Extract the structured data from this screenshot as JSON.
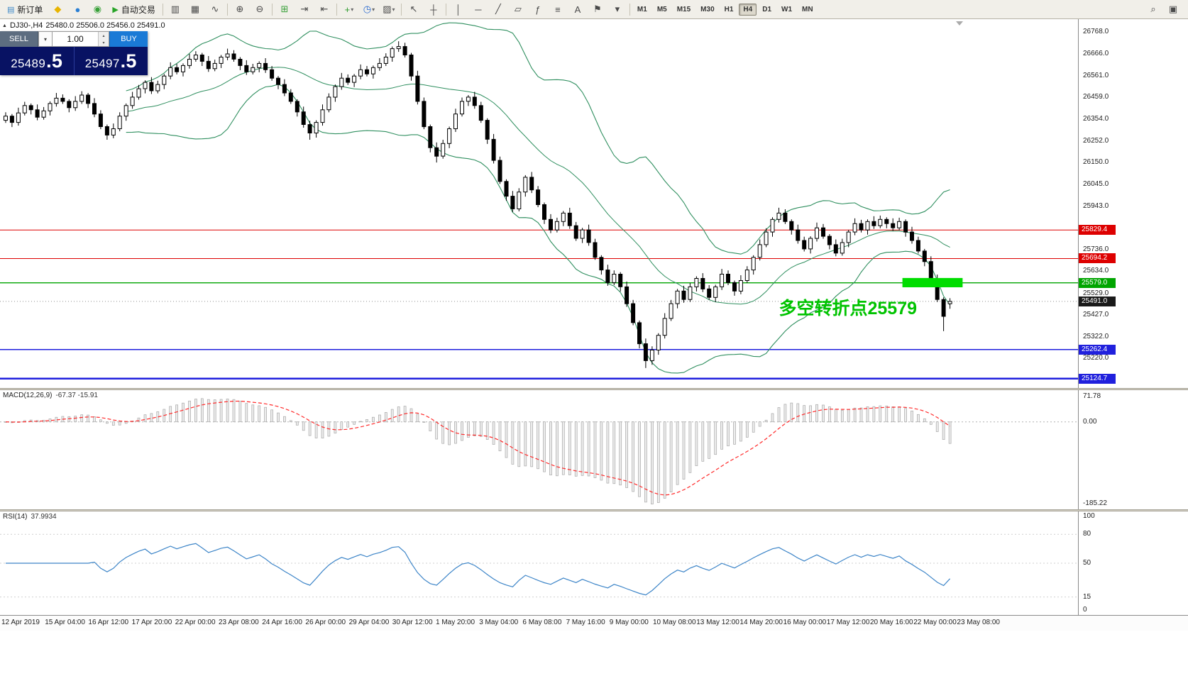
{
  "ui": {
    "caret_down": "▾",
    "spin_up": "▴",
    "spin_down": "▾",
    "symbol_marker": "▲"
  },
  "toolbar": {
    "items": [
      {
        "name": "new-order-button",
        "type": "button",
        "label": "新订单",
        "glyph": "▤",
        "glyph_color": "#3a87c8"
      },
      {
        "name": "lightning-icon",
        "type": "icon",
        "glyph": "◆",
        "glyph_color": "#e8b400"
      },
      {
        "name": "community-icon",
        "type": "icon",
        "glyph": "●",
        "glyph_color": "#2a7fd4"
      },
      {
        "name": "headset-icon",
        "type": "icon",
        "glyph": "◉",
        "glyph_color": "#38a038"
      },
      {
        "name": "auto-trading-button",
        "type": "button",
        "label": "自动交易",
        "glyph": "▶",
        "glyph_color": "#28a428"
      },
      {
        "type": "sep"
      },
      {
        "name": "bars-chart-icon",
        "type": "icon",
        "glyph": "▥"
      },
      {
        "name": "candlestick-chart-icon",
        "type": "icon",
        "glyph": "▦"
      },
      {
        "name": "line-chart-icon",
        "type": "icon",
        "glyph": "∿"
      },
      {
        "type": "sep"
      },
      {
        "name": "zoom-in-icon",
        "type": "icon",
        "glyph": "⊕"
      },
      {
        "name": "zoom-out-icon",
        "type": "icon",
        "glyph": "⊖"
      },
      {
        "type": "sep"
      },
      {
        "name": "tile-windows-icon",
        "type": "icon",
        "glyph": "⊞",
        "glyph_color": "#3aa03a"
      },
      {
        "name": "auto-scroll-icon",
        "type": "icon",
        "glyph": "⇥"
      },
      {
        "name": "chart-shift-icon",
        "type": "icon",
        "glyph": "⇤"
      },
      {
        "type": "sep"
      },
      {
        "name": "indicators-add-icon",
        "type": "icon",
        "glyph": "+",
        "glyph_color": "#2a9a2a",
        "caret": true
      },
      {
        "name": "periods-icon",
        "type": "icon",
        "glyph": "◷",
        "glyph_color": "#2a6ad0",
        "caret": true
      },
      {
        "name": "templates-icon",
        "type": "icon",
        "glyph": "▨",
        "caret": true
      },
      {
        "type": "sep"
      },
      {
        "name": "cursor-icon",
        "type": "icon",
        "glyph": "↖"
      },
      {
        "name": "crosshair-icon",
        "type": "icon",
        "glyph": "┼"
      },
      {
        "type": "sep"
      },
      {
        "name": "vertical-line-icon",
        "type": "icon",
        "glyph": "│"
      },
      {
        "name": "horizontal-line-icon",
        "type": "icon",
        "glyph": "─"
      },
      {
        "name": "trendline-icon",
        "type": "icon",
        "glyph": "╱"
      },
      {
        "name": "equidistant-channel-icon",
        "type": "icon",
        "glyph": "▱"
      },
      {
        "name": "fibonacci-icon",
        "type": "icon",
        "glyph": "ƒ"
      },
      {
        "name": "levels-icon",
        "type": "icon",
        "glyph": "≡"
      },
      {
        "name": "text-icon",
        "type": "icon",
        "glyph": "A"
      },
      {
        "name": "text-label-icon",
        "type": "icon",
        "glyph": "⚑"
      },
      {
        "name": "shapes-dropdown-icon",
        "type": "icon",
        "glyph": "▾"
      },
      {
        "type": "sep"
      }
    ],
    "timeframes": [
      "M1",
      "M5",
      "M15",
      "M30",
      "H1",
      "H4",
      "D1",
      "W1",
      "MN"
    ],
    "active_timeframe": "H4",
    "right_icons": [
      {
        "name": "search-icon",
        "glyph": "⌕"
      },
      {
        "name": "chart-windows-icon",
        "glyph": "▣"
      }
    ]
  },
  "trade_panel": {
    "sell_label": "SELL",
    "buy_label": "BUY",
    "volume": "1.00",
    "sell_price_main": "25489",
    "sell_price_big": ".5",
    "buy_price_main": "25497",
    "buy_price_big": ".5"
  },
  "chart": {
    "symbol_title": "DJ30-,H4",
    "ohlc_text": "25480.0 25506.0 25456.0 25491.0"
  },
  "chart_data": {
    "type": "candlestick",
    "symbol": "DJ30-",
    "timeframe": "H4",
    "current_bar": {
      "open": 25480.0,
      "high": 25506.0,
      "low": 25456.0,
      "close": 25491.0
    },
    "bid": 25491.0,
    "y_axis": {
      "max": 26830,
      "min": 25080,
      "ticks": [
        "26768.0",
        "26666.0",
        "26561.0",
        "26459.0",
        "26354.0",
        "26252.0",
        "26150.0",
        "26045.0",
        "25943.0",
        "25736.0",
        "25634.0",
        "25529.0",
        "25427.0",
        "25322.0",
        "25220.0"
      ]
    },
    "levels": [
      {
        "price": 25829.4,
        "color": "#dd0000",
        "width": 1,
        "type": "resistance"
      },
      {
        "price": 25694.2,
        "color": "#dd0000",
        "width": 1,
        "type": "resistance"
      },
      {
        "price": 25579.0,
        "color": "#00a500",
        "width": 1.3,
        "type": "pivot"
      },
      {
        "price": 25262.4,
        "color": "#2020dd",
        "width": 1.5,
        "type": "support"
      },
      {
        "price": 25124.7,
        "color": "#2020dd",
        "width": 2.5,
        "type": "support"
      }
    ],
    "highlight_rect": {
      "bar_start": 141.5,
      "bar_end": 151,
      "price_top": 25602,
      "price_bottom": 25558,
      "color": "#00dd00"
    },
    "annotation": {
      "text": "多空转折点25579",
      "bar": 122,
      "price": 25430,
      "color": "#00c300",
      "font_size": 25
    },
    "indicators": {
      "bollinger": {
        "period": 20,
        "deviation": 2,
        "color": "#2f8f5f"
      },
      "macd": {
        "label": "MACD(12,26,9)",
        "display_values": "-67.37 -15.91",
        "scale_max": "71.78",
        "scale_zero": "0.00",
        "scale_min": "-185.22",
        "signal_color": "#ff2a2a",
        "histogram_fill": "#ececec",
        "histogram_stroke": "#a8a8a8"
      },
      "rsi": {
        "label": "RSI(14)",
        "display_value": "37.9934",
        "color": "#3d85c8",
        "levels": [
          80,
          50,
          15
        ],
        "scale": [
          "100",
          "80",
          "50",
          "15",
          "0"
        ]
      }
    },
    "candle_colors": {
      "bull_fill": "#ffffff",
      "bear_fill": "#000000",
      "outline": "#000000"
    },
    "x_axis_labels": [
      "12 Apr 2019",
      "15 Apr 04:00",
      "16 Apr 12:00",
      "17 Apr 20:00",
      "22 Apr 00:00",
      "23 Apr 08:00",
      "24 Apr 16:00",
      "26 Apr 00:00",
      "29 Apr 04:00",
      "30 Apr 12:00",
      "1 May 20:00",
      "3 May 04:00",
      "6 May 08:00",
      "7 May 16:00",
      "9 May 00:00",
      "10 May 08:00",
      "13 May 12:00",
      "14 May 20:00",
      "16 May 00:00",
      "17 May 12:00",
      "20 May 16:00",
      "22 May 00:00",
      "23 May 08:00"
    ],
    "candles": [
      [
        26350,
        26388,
        26338,
        26370
      ],
      [
        26370,
        26380,
        26318,
        26340
      ],
      [
        26340,
        26410,
        26325,
        26385
      ],
      [
        26385,
        26438,
        26373,
        26420
      ],
      [
        26420,
        26430,
        26378,
        26400
      ],
      [
        26400,
        26425,
        26350,
        26365
      ],
      [
        26365,
        26413,
        26353,
        26395
      ],
      [
        26395,
        26440,
        26373,
        26430
      ],
      [
        26430,
        26480,
        26415,
        26455
      ],
      [
        26455,
        26473,
        26428,
        26440
      ],
      [
        26440,
        26450,
        26388,
        26410
      ],
      [
        26410,
        26465,
        26395,
        26440
      ],
      [
        26440,
        26488,
        26428,
        26470
      ],
      [
        26470,
        26480,
        26408,
        26430
      ],
      [
        26430,
        26455,
        26365,
        26380
      ],
      [
        26380,
        26398,
        26308,
        26320
      ],
      [
        26320,
        26330,
        26258,
        26280
      ],
      [
        26280,
        26335,
        26265,
        26310
      ],
      [
        26310,
        26388,
        26298,
        26370
      ],
      [
        26370,
        26430,
        26348,
        26420
      ],
      [
        26420,
        26485,
        26405,
        26460
      ],
      [
        26460,
        26518,
        26448,
        26500
      ],
      [
        26500,
        26540,
        26478,
        26530
      ],
      [
        26530,
        26555,
        26475,
        26490
      ],
      [
        26490,
        26538,
        26478,
        26520
      ],
      [
        26520,
        26570,
        26498,
        26560
      ],
      [
        26560,
        26625,
        26545,
        26600
      ],
      [
        26600,
        26618,
        26568,
        26580
      ],
      [
        26580,
        26620,
        26558,
        26610
      ],
      [
        26610,
        26665,
        26595,
        26640
      ],
      [
        26640,
        26678,
        26628,
        26660
      ],
      [
        26660,
        26670,
        26608,
        26630
      ],
      [
        26630,
        26655,
        26580,
        26595
      ],
      [
        26595,
        26638,
        26583,
        26620
      ],
      [
        26620,
        26660,
        26598,
        26650
      ],
      [
        26650,
        26690,
        26635,
        26665
      ],
      [
        26665,
        26683,
        26628,
        26640
      ],
      [
        26640,
        26650,
        26588,
        26610
      ],
      [
        26610,
        26635,
        26565,
        26580
      ],
      [
        26580,
        26618,
        26568,
        26600
      ],
      [
        26600,
        26630,
        26578,
        26620
      ],
      [
        26620,
        26645,
        26575,
        26590
      ],
      [
        26590,
        26608,
        26538,
        26550
      ],
      [
        26550,
        26560,
        26498,
        26520
      ],
      [
        26520,
        26545,
        26465,
        26480
      ],
      [
        26480,
        26498,
        26428,
        26440
      ],
      [
        26440,
        26450,
        26368,
        26390
      ],
      [
        26390,
        26415,
        26315,
        26330
      ],
      [
        26330,
        26348,
        26258,
        26290
      ],
      [
        26290,
        26350,
        26268,
        26340
      ],
      [
        26340,
        26425,
        26325,
        26400
      ],
      [
        26400,
        26478,
        26388,
        26460
      ],
      [
        26460,
        26520,
        26438,
        26510
      ],
      [
        26510,
        26575,
        26495,
        26550
      ],
      [
        26550,
        26568,
        26518,
        26530
      ],
      [
        26530,
        26570,
        26508,
        26560
      ],
      [
        26560,
        26615,
        26545,
        26590
      ],
      [
        26590,
        26608,
        26558,
        26570
      ],
      [
        26570,
        26610,
        26548,
        26600
      ],
      [
        26600,
        26645,
        26585,
        26620
      ],
      [
        26620,
        26668,
        26608,
        26650
      ],
      [
        26650,
        26700,
        26628,
        26690
      ],
      [
        26690,
        26725,
        26675,
        26700
      ],
      [
        26700,
        26718,
        26648,
        26660
      ],
      [
        26660,
        26670,
        26538,
        26560
      ],
      [
        26560,
        26585,
        26425,
        26440
      ],
      [
        26440,
        26458,
        26308,
        26320
      ],
      [
        26320,
        26330,
        26198,
        26220
      ],
      [
        26220,
        26245,
        26150,
        26180
      ],
      [
        26180,
        26258,
        26168,
        26240
      ],
      [
        26240,
        26320,
        26218,
        26310
      ],
      [
        26310,
        26405,
        26295,
        26380
      ],
      [
        26380,
        26458,
        26368,
        26440
      ],
      [
        26440,
        26470,
        26418,
        26460
      ],
      [
        26460,
        26485,
        26405,
        26420
      ],
      [
        26420,
        26438,
        26338,
        26350
      ],
      [
        26350,
        26360,
        26238,
        26260
      ],
      [
        26260,
        26285,
        26145,
        26160
      ],
      [
        26160,
        26178,
        26048,
        26060
      ],
      [
        26060,
        26070,
        25968,
        25990
      ],
      [
        25990,
        26015,
        25915,
        25930
      ],
      [
        25930,
        26028,
        25918,
        26010
      ],
      [
        26010,
        26090,
        25988,
        26080
      ],
      [
        26080,
        26105,
        26005,
        26020
      ],
      [
        26020,
        26038,
        25938,
        25950
      ],
      [
        25950,
        25960,
        25858,
        25880
      ],
      [
        25880,
        25905,
        25815,
        25830
      ],
      [
        25830,
        25888,
        25818,
        25870
      ],
      [
        25870,
        25920,
        25848,
        25910
      ],
      [
        25910,
        25935,
        25835,
        25850
      ],
      [
        25850,
        25868,
        25778,
        25790
      ],
      [
        25790,
        25840,
        25768,
        25830
      ],
      [
        25830,
        25855,
        25755,
        25770
      ],
      [
        25770,
        25788,
        25688,
        25700
      ],
      [
        25700,
        25710,
        25618,
        25640
      ],
      [
        25640,
        25665,
        25565,
        25580
      ],
      [
        25580,
        25638,
        25568,
        25620
      ],
      [
        25620,
        25630,
        25538,
        25560
      ],
      [
        25560,
        25585,
        25465,
        25480
      ],
      [
        25480,
        25498,
        25378,
        25390
      ],
      [
        25390,
        25400,
        25268,
        25290
      ],
      [
        25290,
        25315,
        25175,
        25210
      ],
      [
        25210,
        25278,
        25190,
        25260
      ],
      [
        25260,
        25340,
        25238,
        25330
      ],
      [
        25330,
        25435,
        25315,
        25410
      ],
      [
        25410,
        25498,
        25398,
        25480
      ],
      [
        25480,
        25550,
        25458,
        25540
      ],
      [
        25540,
        25565,
        25485,
        25500
      ],
      [
        25500,
        25578,
        25488,
        25560
      ],
      [
        25560,
        25610,
        25538,
        25600
      ],
      [
        25600,
        25625,
        25535,
        25550
      ],
      [
        25550,
        25568,
        25498,
        25510
      ],
      [
        25510,
        25570,
        25488,
        25560
      ],
      [
        25560,
        25645,
        25545,
        25620
      ],
      [
        25620,
        25638,
        25568,
        25580
      ],
      [
        25580,
        25590,
        25518,
        25540
      ],
      [
        25540,
        25615,
        25525,
        25590
      ],
      [
        25590,
        25658,
        25578,
        25640
      ],
      [
        25640,
        25710,
        25618,
        25700
      ],
      [
        25700,
        25785,
        25685,
        25760
      ],
      [
        25760,
        25838,
        25748,
        25820
      ],
      [
        25820,
        25890,
        25798,
        25880
      ],
      [
        25880,
        25935,
        25865,
        25910
      ],
      [
        25910,
        25928,
        25858,
        25870
      ],
      [
        25870,
        25880,
        25808,
        25830
      ],
      [
        25830,
        25855,
        25765,
        25780
      ],
      [
        25780,
        25798,
        25728,
        25740
      ],
      [
        25740,
        25800,
        25718,
        25790
      ],
      [
        25790,
        25865,
        25775,
        25840
      ],
      [
        25840,
        25858,
        25788,
        25800
      ],
      [
        25800,
        25810,
        25738,
        25760
      ],
      [
        25760,
        25785,
        25705,
        25720
      ],
      [
        25720,
        25788,
        25708,
        25770
      ],
      [
        25770,
        25830,
        25748,
        25820
      ],
      [
        25820,
        25885,
        25805,
        25860
      ],
      [
        25860,
        25878,
        25818,
        25830
      ],
      [
        25830,
        25880,
        25808,
        25870
      ],
      [
        25870,
        25895,
        25835,
        25850
      ],
      [
        25850,
        25898,
        25838,
        25880
      ],
      [
        25880,
        25890,
        25838,
        25860
      ],
      [
        25860,
        25885,
        25825,
        25840
      ],
      [
        25840,
        25888,
        25828,
        25870
      ],
      [
        25870,
        25880,
        25798,
        25820
      ],
      [
        25820,
        25845,
        25765,
        25780
      ],
      [
        25780,
        25798,
        25718,
        25730
      ],
      [
        25730,
        25740,
        25658,
        25680
      ],
      [
        25680,
        25705,
        25585,
        25600
      ],
      [
        25600,
        25618,
        25488,
        25500
      ],
      [
        25500,
        25510,
        25350,
        25420
      ],
      [
        25480,
        25506,
        25456,
        25491
      ]
    ]
  }
}
